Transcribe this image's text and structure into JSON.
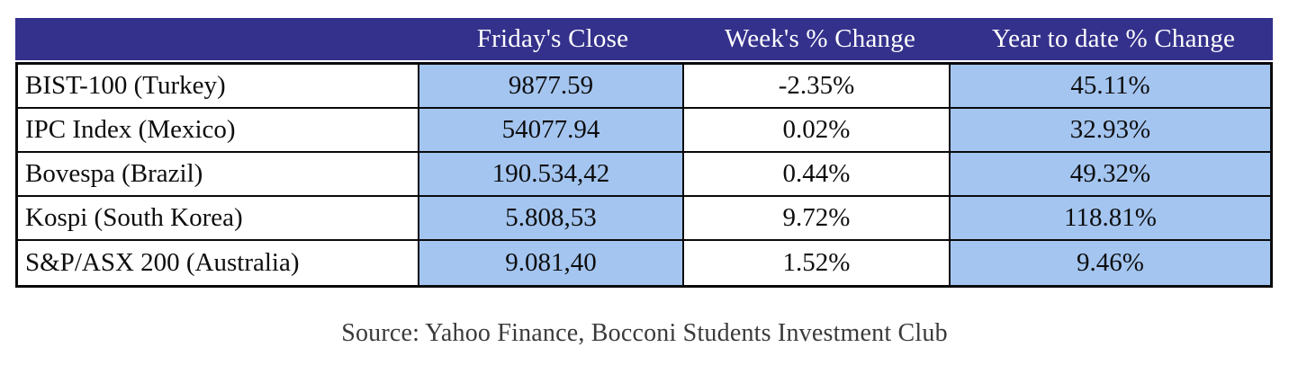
{
  "colors": {
    "header_bg": "#34318C",
    "header_text": "#ffffff",
    "highlight_cell_bg": "#A4C5F0",
    "plain_cell_bg": "#ffffff",
    "border": "#0a0a0a",
    "source_text": "#3a3a3a"
  },
  "table": {
    "headers": [
      "",
      "Friday's Close",
      "Week's % Change",
      "Year to date % Change"
    ],
    "rows": [
      {
        "name": "BIST-100 (Turkey)",
        "close": "9877.59",
        "week": "-2.35%",
        "ytd": "45.11%"
      },
      {
        "name": "IPC Index (Mexico)",
        "close": "54077.94",
        "week": "0.02%",
        "ytd": "32.93%"
      },
      {
        "name": "Bovespa (Brazil)",
        "close": "190.534,42",
        "week": "0.44%",
        "ytd": "49.32%"
      },
      {
        "name": "Kospi (South Korea)",
        "close": "5.808,53",
        "week": "9.72%",
        "ytd": "118.81%"
      },
      {
        "name": "S&P/ASX 200 (Australia)",
        "close": "9.081,40",
        "week": "1.52%",
        "ytd": "9.46%"
      }
    ]
  },
  "source": "Source: Yahoo Finance, Bocconi Students Investment Club",
  "chart_data": {
    "type": "table",
    "columns": [
      "",
      "Friday's Close",
      "Week's % Change",
      "Year to date % Change"
    ],
    "rows": [
      [
        "BIST-100 (Turkey)",
        "9877.59",
        "-2.35%",
        "45.11%"
      ],
      [
        "IPC Index (Mexico)",
        "54077.94",
        "0.02%",
        "32.93%"
      ],
      [
        "Bovespa (Brazil)",
        "190.534,42",
        "0.44%",
        "49.32%"
      ],
      [
        "Kospi (South Korea)",
        "5.808,53",
        "9.72%",
        "118.81%"
      ],
      [
        "S&P/ASX 200 (Australia)",
        "9.081,40",
        "1.52%",
        "9.46%"
      ]
    ],
    "title": "",
    "source": "Source: Yahoo Finance, Bocconi Students Investment Club",
    "layout": {
      "header_style": "dark-indigo-band",
      "highlight_columns": [
        1,
        3
      ],
      "grid": "black-borders"
    }
  }
}
